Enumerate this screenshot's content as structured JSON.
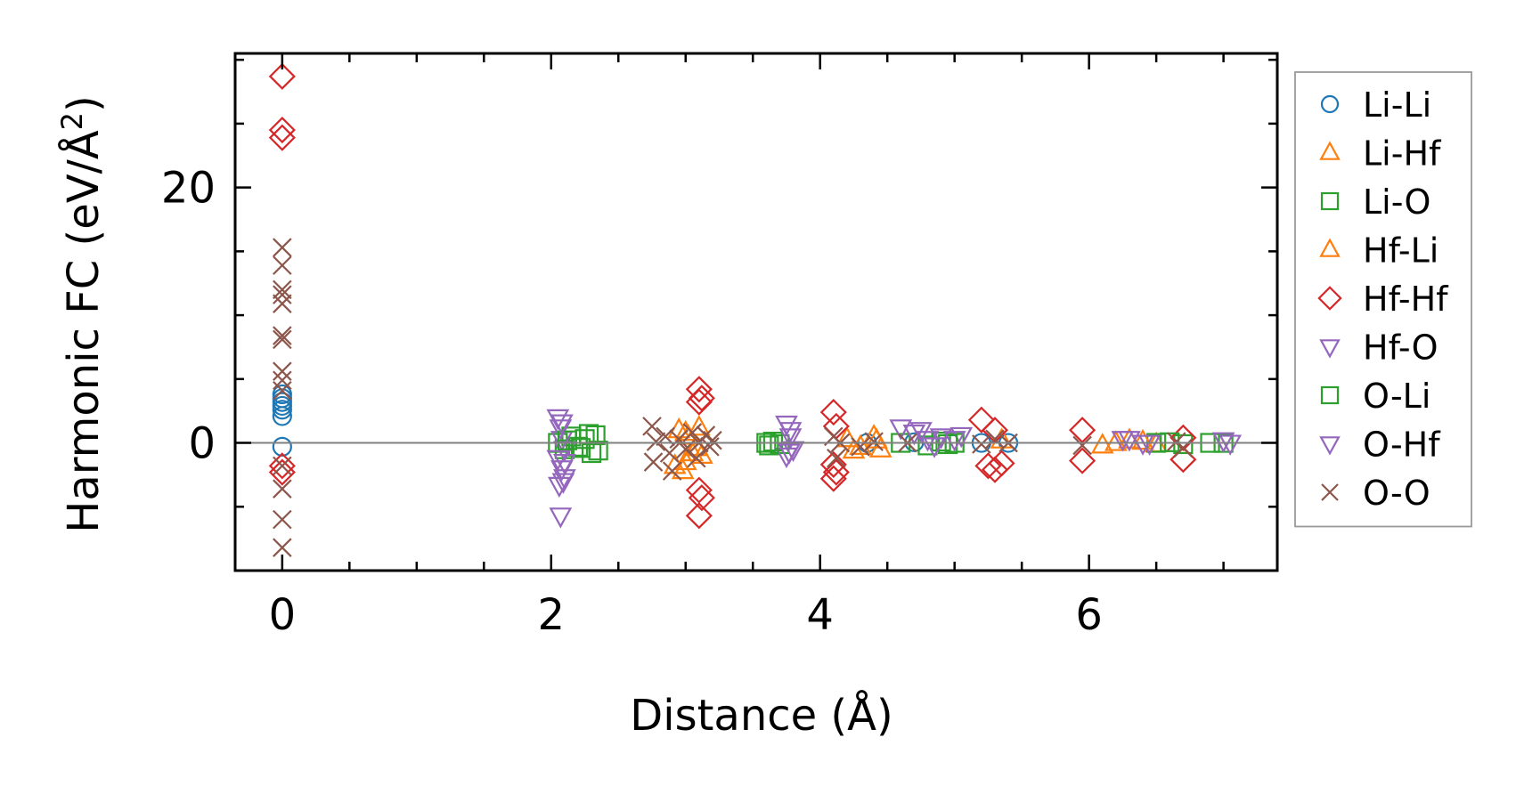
{
  "chart_data": {
    "type": "scatter",
    "xlabel": "Distance (Å)",
    "ylabel_main": "Harmonic FC (eV/Å",
    "ylabel_sup": "2",
    "ylabel_close": ")",
    "xlim": [
      -0.35,
      7.4
    ],
    "ylim": [
      -10,
      30.5
    ],
    "xticks": [
      {
        "value": 0,
        "label": "0"
      },
      {
        "value": 2,
        "label": "2"
      },
      {
        "value": 4,
        "label": "4"
      },
      {
        "value": 6,
        "label": "6"
      }
    ],
    "yticks": [
      {
        "value": 0,
        "label": "0"
      },
      {
        "value": 20,
        "label": "20"
      }
    ],
    "x_minor_step": 0.5,
    "y_minor_step": 5,
    "zero_line": true,
    "grid": false,
    "legend_position": "right-outside",
    "series": [
      {
        "name": "Li-Li",
        "marker": "circle",
        "color": "#1f77b4",
        "points": [
          [
            0,
            3.8
          ],
          [
            0,
            3.5
          ],
          [
            0,
            3.2
          ],
          [
            0,
            2.9
          ],
          [
            0,
            2.6
          ],
          [
            0,
            2.1
          ],
          [
            0,
            -0.3
          ],
          [
            4.35,
            0.0
          ],
          [
            4.7,
            0.05
          ],
          [
            5.4,
            0.0
          ],
          [
            5.2,
            0.0
          ]
        ]
      },
      {
        "name": "Li-Hf",
        "marker": "triangle-up",
        "color": "#ff7f0e",
        "points": [
          [
            2.95,
            1.0
          ],
          [
            2.98,
            -2.2
          ],
          [
            3.0,
            -1.5
          ],
          [
            3.02,
            0.5
          ],
          [
            3.05,
            -0.8
          ],
          [
            3.1,
            1.2
          ],
          [
            3.12,
            -1.0
          ],
          [
            4.2,
            0.3
          ],
          [
            4.25,
            -0.6
          ],
          [
            4.4,
            0.5
          ],
          [
            4.45,
            -0.5
          ],
          [
            5.35,
            0.2
          ],
          [
            6.1,
            -0.2
          ],
          [
            6.3,
            0.2
          ],
          [
            6.5,
            -0.1
          ]
        ]
      },
      {
        "name": "Li-O",
        "marker": "square",
        "color": "#2ca02c",
        "points": [
          [
            2.05,
            0.0
          ],
          [
            2.1,
            -0.5
          ],
          [
            2.15,
            0.5
          ],
          [
            2.2,
            -0.3
          ],
          [
            2.25,
            0.3
          ],
          [
            2.3,
            -0.8
          ],
          [
            2.33,
            0.6
          ],
          [
            2.35,
            -0.6
          ],
          [
            3.6,
            0.0
          ],
          [
            3.65,
            0.1
          ],
          [
            3.7,
            -0.1
          ],
          [
            4.6,
            0.0
          ],
          [
            4.8,
            -0.2
          ],
          [
            4.9,
            0.1
          ],
          [
            5.0,
            0.0
          ],
          [
            6.5,
            0.0
          ],
          [
            6.7,
            -0.1
          ],
          [
            6.9,
            0.0
          ],
          [
            7.0,
            0.0
          ]
        ]
      },
      {
        "name": "Hf-Li",
        "marker": "triangle-up",
        "color": "#ff7f0e",
        "points": [
          [
            2.92,
            -1.8
          ],
          [
            3.0,
            0.8
          ],
          [
            3.08,
            -0.4
          ],
          [
            4.3,
            -0.3
          ],
          [
            4.42,
            0.2
          ],
          [
            6.2,
            0.0
          ],
          [
            6.4,
            0.1
          ]
        ]
      },
      {
        "name": "Hf-Hf",
        "marker": "diamond",
        "color": "#d62728",
        "points": [
          [
            0,
            28.7
          ],
          [
            0,
            24.5
          ],
          [
            0,
            23.9
          ],
          [
            0,
            -1.8
          ],
          [
            0,
            -2.3
          ],
          [
            3.1,
            4.2
          ],
          [
            3.12,
            3.5
          ],
          [
            3.1,
            3.2
          ],
          [
            3.1,
            -3.7
          ],
          [
            3.12,
            -4.3
          ],
          [
            3.1,
            -5.7
          ],
          [
            4.1,
            2.4
          ],
          [
            4.12,
            1.3
          ],
          [
            4.1,
            -1.7
          ],
          [
            4.12,
            -2.3
          ],
          [
            4.1,
            -2.8
          ],
          [
            5.2,
            1.8
          ],
          [
            5.25,
            -1.8
          ],
          [
            5.3,
            1.0
          ],
          [
            5.3,
            -2.1
          ],
          [
            5.35,
            -1.6
          ],
          [
            5.95,
            1.0
          ],
          [
            5.95,
            -1.4
          ],
          [
            6.7,
            0.4
          ],
          [
            6.7,
            -1.3
          ]
        ]
      },
      {
        "name": "Hf-O",
        "marker": "triangle-down",
        "color": "#9467bd",
        "points": [
          [
            2.05,
            2.0
          ],
          [
            2.07,
            1.2
          ],
          [
            2.08,
            0.3
          ],
          [
            2.1,
            -0.5
          ],
          [
            2.05,
            -1.2
          ],
          [
            2.08,
            -2.0
          ],
          [
            2.1,
            -2.7
          ],
          [
            2.06,
            -3.3
          ],
          [
            2.07,
            -5.7
          ],
          [
            3.75,
            1.5
          ],
          [
            3.78,
            0.5
          ],
          [
            3.8,
            -0.5
          ],
          [
            3.75,
            -1.0
          ],
          [
            4.6,
            1.2
          ],
          [
            4.7,
            0.8
          ],
          [
            4.8,
            0.3
          ],
          [
            4.9,
            0.5
          ],
          [
            5.05,
            0.6
          ],
          [
            6.25,
            0.3
          ],
          [
            6.4,
            0.0
          ],
          [
            7.0,
            0.2
          ]
        ]
      },
      {
        "name": "O-Li",
        "marker": "square",
        "color": "#2ca02c",
        "points": [
          [
            2.12,
            0.2
          ],
          [
            2.22,
            -0.4
          ],
          [
            2.28,
            0.7
          ],
          [
            3.62,
            -0.2
          ],
          [
            4.95,
            -0.1
          ],
          [
            6.6,
            0.05
          ]
        ]
      },
      {
        "name": "O-Hf",
        "marker": "triangle-down",
        "color": "#9467bd",
        "points": [
          [
            2.08,
            1.6
          ],
          [
            2.1,
            -1.5
          ],
          [
            2.09,
            -3.0
          ],
          [
            3.78,
            1.0
          ],
          [
            3.77,
            -0.7
          ],
          [
            4.75,
            1.0
          ],
          [
            4.85,
            -0.2
          ],
          [
            5.0,
            0.3
          ],
          [
            6.3,
            0.3
          ],
          [
            6.45,
            0.0
          ],
          [
            7.05,
            0.0
          ]
        ]
      },
      {
        "name": "O-O",
        "marker": "x",
        "color": "#8c564b",
        "points": [
          [
            0,
            15.3
          ],
          [
            0,
            13.9
          ],
          [
            0,
            12.0
          ],
          [
            0,
            11.6
          ],
          [
            0,
            10.9
          ],
          [
            0,
            8.4
          ],
          [
            0,
            8.1
          ],
          [
            0,
            5.6
          ],
          [
            0,
            4.9
          ],
          [
            0,
            4.1
          ],
          [
            0,
            -1.8
          ],
          [
            0,
            -3.6
          ],
          [
            0,
            -6.0
          ],
          [
            0,
            -8.2
          ],
          [
            2.75,
            1.3
          ],
          [
            2.78,
            0.1
          ],
          [
            2.76,
            -1.5
          ],
          [
            2.85,
            0.5
          ],
          [
            2.88,
            -0.8
          ],
          [
            2.9,
            -2.2
          ],
          [
            2.95,
            0.3
          ],
          [
            3.0,
            -0.5
          ],
          [
            3.05,
            0.8
          ],
          [
            3.08,
            -1.2
          ],
          [
            3.1,
            0.0
          ],
          [
            3.15,
            0.6
          ],
          [
            3.18,
            -0.3
          ],
          [
            3.2,
            0.2
          ],
          [
            4.1,
            0.5
          ],
          [
            4.12,
            -1.2
          ],
          [
            4.15,
            0.0
          ],
          [
            4.3,
            -0.3
          ],
          [
            4.4,
            0.1
          ],
          [
            4.65,
            0.0
          ],
          [
            5.2,
            -0.1
          ],
          [
            5.3,
            0.3
          ],
          [
            5.4,
            0.0
          ],
          [
            5.95,
            -0.2
          ],
          [
            6.65,
            0.1
          ],
          [
            6.7,
            -0.4
          ]
        ]
      }
    ]
  }
}
